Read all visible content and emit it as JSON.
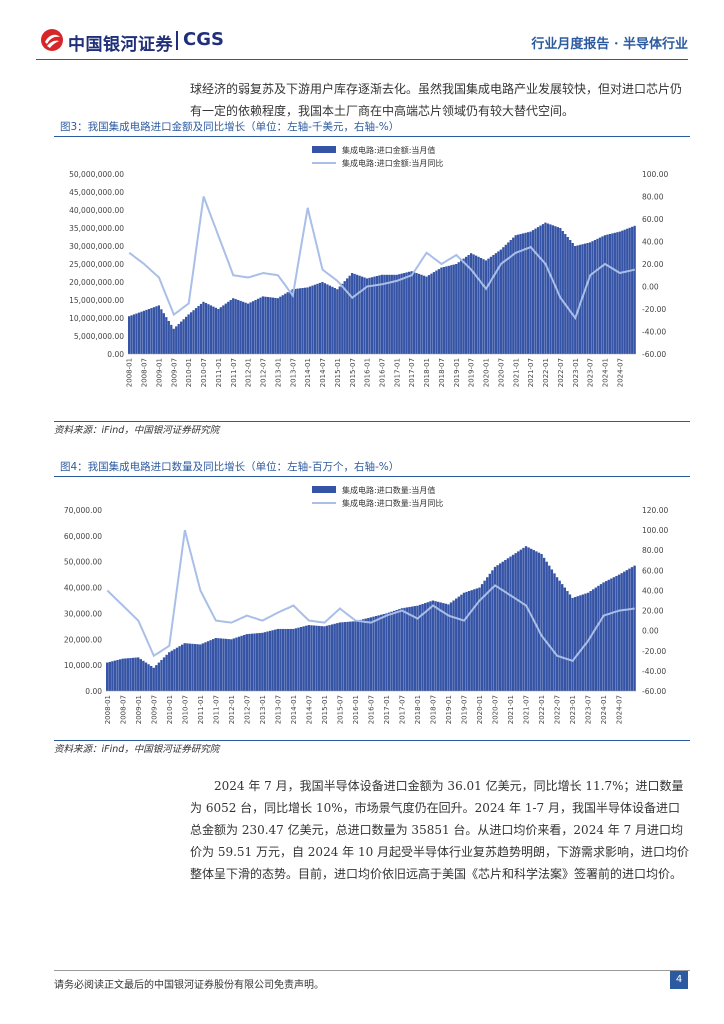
{
  "header": {
    "logo_cn": "中国银河证券",
    "logo_en": "CGS",
    "report_type": "行业月度报告 · 半导体行业"
  },
  "paragraphs": {
    "top": "球经济的弱复苏及下游用户库存逐渐去化。虽然我国集成电路产业发展较快，但对进口芯片仍有一定的依赖程度，我国本土厂商在中高端芯片领域仍有较大替代空间。",
    "bottom": "2024 年 7 月，我国半导体设备进口金额为 36.01 亿美元，同比增长 11.7%；进口数量为 6052 台，同比增长 10%，市场景气度仍在回升。2024 年 1-7 月，我国半导体设备进口总金额为 230.47 亿美元，总进口数量为 35851 台。从进口均价来看，2024 年 7 月进口均价为 59.51 万元，自 2024 年 10 月起受半导体行业复苏趋势明朗，下游需求影响，进口均价整体呈下滑的态势。目前，进口均价依旧远高于美国《芯片和科学法案》签署前的进口均价。"
  },
  "figure3": {
    "title": "图3：我国集成电路进口金额及同比增长（单位：左轴-千美元，右轴-%）",
    "source": "资料来源：iFind，中国银河证券研究院"
  },
  "figure4": {
    "title": "图4：我国集成电路进口数量及同比增长（单位：左轴-百万个，右轴-%）",
    "source": "资料来源：iFind，中国银河证券研究院"
  },
  "footer": {
    "disclaimer": "请务必阅读正文最后的中国银河证券股份有限公司免责声明。",
    "page": "4"
  },
  "colors": {
    "bar": "#3654a6",
    "line": "#a9bfe8",
    "brand_blue": "#2c5aa0",
    "logo_red": "#d7262a"
  },
  "chart_data": [
    {
      "type": "bar",
      "legend_position": "top",
      "grid": false,
      "legend": [
        "集成电路:进口金额:当月值",
        "集成电路:进口金额:当月同比"
      ],
      "y_left": {
        "min": 0,
        "max": 50000000,
        "ticks": [
          "0.00",
          "5,000,000.00",
          "10,000,000.00",
          "15,000,000.00",
          "20,000,000.00",
          "25,000,000.00",
          "30,000,000.00",
          "35,000,000.00",
          "40,000,000.00",
          "45,000,000.00",
          "50,000,000.00"
        ]
      },
      "y_right": {
        "min": -60,
        "max": 100,
        "ticks": [
          "-60.00",
          "-40.00",
          "-20.00",
          "0.00",
          "20.00",
          "40.00",
          "60.00",
          "80.00",
          "100.00"
        ]
      },
      "x_ticks": [
        "2008-01",
        "2008-07",
        "2009-01",
        "2009-07",
        "2010-01",
        "2010-07",
        "2011-01",
        "2011-07",
        "2012-01",
        "2012-07",
        "2013-01",
        "2013-07",
        "2014-01",
        "2014-07",
        "2015-01",
        "2015-07",
        "2016-01",
        "2016-07",
        "2017-01",
        "2017-07",
        "2018-01",
        "2018-07",
        "2019-01",
        "2019-07",
        "2020-01",
        "2020-07",
        "2021-01",
        "2021-07",
        "2022-01",
        "2022-07",
        "2023-01",
        "2023-07",
        "2024-01",
        "2024-07"
      ],
      "series": [
        {
          "name": "集成电路:进口金额:当月值",
          "axis": "left",
          "kind": "bar",
          "anchor_values": [
            10500000,
            12000000,
            13500000,
            7000000,
            11000000,
            14500000,
            12500000,
            15500000,
            14000000,
            16000000,
            15500000,
            18000000,
            18500000,
            20000000,
            18000000,
            22500000,
            21000000,
            22000000,
            22000000,
            23000000,
            21500000,
            24000000,
            25000000,
            28000000,
            26000000,
            29000000,
            33000000,
            34000000,
            36500000,
            35000000,
            30000000,
            31000000,
            33000000,
            34000000,
            35600000
          ]
        },
        {
          "name": "集成电路:进口金额:当月同比",
          "axis": "right",
          "kind": "line",
          "anchor_values": [
            30,
            20,
            8,
            -25,
            -15,
            80,
            45,
            10,
            8,
            12,
            10,
            -8,
            70,
            15,
            5,
            -10,
            0,
            2,
            5,
            10,
            30,
            20,
            28,
            15,
            -2,
            20,
            30,
            35,
            20,
            -10,
            -28,
            10,
            20,
            12,
            15
          ]
        }
      ]
    },
    {
      "type": "bar",
      "legend_position": "top",
      "grid": false,
      "legend": [
        "集成电路:进口数量:当月值",
        "集成电路:进口数量:当月同比"
      ],
      "y_left": {
        "min": 0,
        "max": 70000,
        "ticks": [
          "0.00",
          "10,000.00",
          "20,000.00",
          "30,000.00",
          "40,000.00",
          "50,000.00",
          "60,000.00",
          "70,000.00"
        ]
      },
      "y_right": {
        "min": -60,
        "max": 120,
        "ticks": [
          "-60.00",
          "-40.00",
          "-20.00",
          "0.00",
          "20.00",
          "40.00",
          "60.00",
          "80.00",
          "100.00",
          "120.00"
        ]
      },
      "x_ticks": [
        "2008-01",
        "2008-07",
        "2009-01",
        "2009-07",
        "2010-01",
        "2010-07",
        "2011-01",
        "2011-07",
        "2012-01",
        "2012-07",
        "2013-01",
        "2013-07",
        "2014-01",
        "2014-07",
        "2015-01",
        "2015-07",
        "2016-01",
        "2016-07",
        "2017-01",
        "2017-07",
        "2018-01",
        "2018-07",
        "2019-01",
        "2019-07",
        "2020-01",
        "2020-07",
        "2021-01",
        "2021-07",
        "2022-01",
        "2022-07",
        "2023-01",
        "2023-07",
        "2024-01",
        "2024-07"
      ],
      "series": [
        {
          "name": "集成电路:进口数量:当月值",
          "axis": "left",
          "kind": "bar",
          "anchor_values": [
            11000,
            12500,
            13000,
            9000,
            15000,
            18500,
            18000,
            20500,
            20000,
            22000,
            22500,
            24000,
            24000,
            25500,
            25000,
            26500,
            27000,
            28500,
            30000,
            32000,
            33000,
            35000,
            33500,
            38000,
            40000,
            48000,
            52000,
            56000,
            53000,
            44000,
            36000,
            38000,
            42000,
            45000,
            48500
          ]
        },
        {
          "name": "集成电路:进口数量:当月同比",
          "axis": "right",
          "kind": "line",
          "anchor_values": [
            40,
            25,
            10,
            -25,
            -15,
            100,
            40,
            10,
            8,
            15,
            10,
            18,
            25,
            10,
            8,
            22,
            10,
            8,
            15,
            20,
            12,
            25,
            15,
            10,
            30,
            45,
            35,
            25,
            -5,
            -25,
            -30,
            -10,
            15,
            20,
            22
          ]
        }
      ]
    }
  ]
}
